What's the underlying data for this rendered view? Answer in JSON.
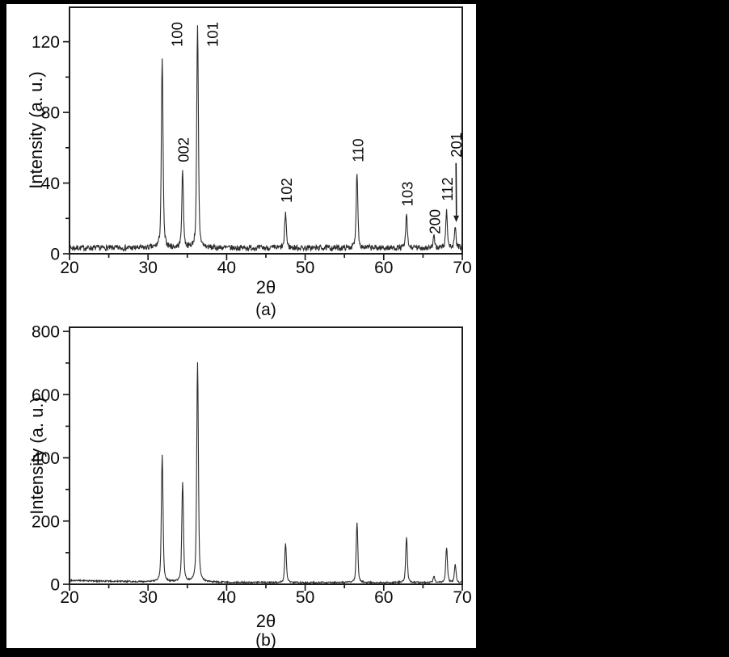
{
  "figure": {
    "background": "#000000",
    "paper_color": "#ffffff",
    "ink_color": "#1c1c1c",
    "curve_color": "#2d2d2d"
  },
  "chart_data": [
    {
      "panel": "a",
      "type": "line",
      "kind": "xrd-powder-pattern",
      "caption": "(a)",
      "xlabel": "2θ",
      "ylabel": "Intensity (a. u.)",
      "xlim": [
        20,
        70
      ],
      "ylim": [
        0,
        140
      ],
      "x_major_ticks": [
        20,
        30,
        40,
        50,
        60,
        70
      ],
      "x_minor_ticks": [
        25,
        35,
        45,
        55,
        65
      ],
      "y_major_ticks": [
        0,
        40,
        80,
        120
      ],
      "y_minor_ticks": [
        20,
        60,
        100
      ],
      "grid": false,
      "legend": "none",
      "baseline_level": 3.3,
      "noise_amplitude": 1.6,
      "line_color": "#2d2d2d",
      "peaks": [
        {
          "hkl": "100",
          "two_theta": 31.8,
          "intensity": 107
        },
        {
          "hkl": "002",
          "two_theta": 34.4,
          "intensity": 43
        },
        {
          "hkl": "101",
          "two_theta": 36.3,
          "intensity": 125
        },
        {
          "hkl": "102",
          "two_theta": 47.5,
          "intensity": 20
        },
        {
          "hkl": "110",
          "two_theta": 56.6,
          "intensity": 43
        },
        {
          "hkl": "103",
          "two_theta": 62.9,
          "intensity": 18
        },
        {
          "hkl": "200",
          "two_theta": 66.4,
          "intensity": 6
        },
        {
          "hkl": "112",
          "two_theta": 68.0,
          "intensity": 21
        },
        {
          "hkl": "201",
          "two_theta": 69.1,
          "intensity": 11,
          "arrow": true
        }
      ]
    },
    {
      "panel": "b",
      "type": "line",
      "kind": "xrd-powder-pattern",
      "caption": "(b)",
      "xlabel": "2θ",
      "ylabel": "Intensity (a. u.)",
      "xlim": [
        20,
        70
      ],
      "ylim": [
        0,
        800
      ],
      "x_major_ticks": [
        20,
        30,
        40,
        50,
        60,
        70
      ],
      "x_minor_ticks": [
        25,
        35,
        45,
        55,
        65
      ],
      "y_major_ticks": [
        0,
        200,
        400,
        600,
        800
      ],
      "y_minor_ticks": [
        100,
        300,
        500,
        700
      ],
      "grid": false,
      "legend": "none",
      "baseline_level": 6,
      "noise_amplitude": 2.4,
      "line_color": "#2d2d2d",
      "peaks": [
        {
          "two_theta": 31.8,
          "intensity": 402
        },
        {
          "two_theta": 34.4,
          "intensity": 313
        },
        {
          "two_theta": 36.3,
          "intensity": 695
        },
        {
          "two_theta": 47.5,
          "intensity": 123
        },
        {
          "two_theta": 56.6,
          "intensity": 188
        },
        {
          "two_theta": 62.9,
          "intensity": 144
        },
        {
          "two_theta": 66.4,
          "intensity": 20
        },
        {
          "two_theta": 68.0,
          "intensity": 112
        },
        {
          "two_theta": 69.1,
          "intensity": 58
        }
      ]
    }
  ]
}
